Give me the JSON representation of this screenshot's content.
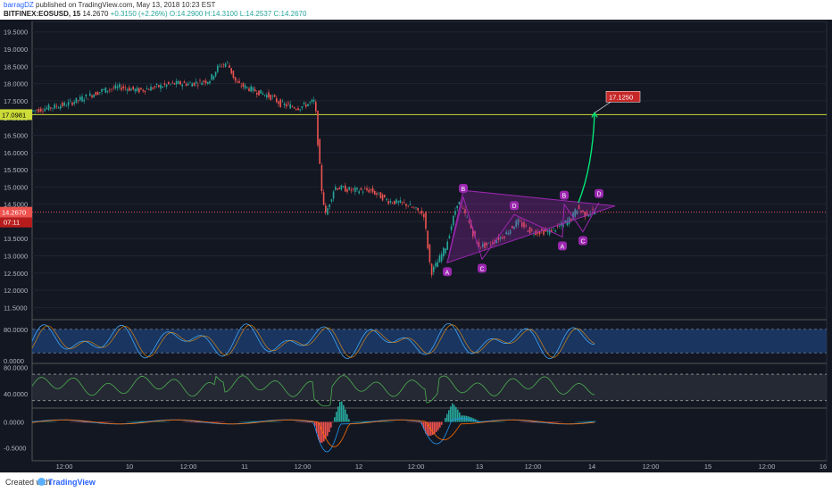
{
  "header": {
    "author": "barragDZ",
    "published": "published on TradingView.com, May 13, 2018 10:23 EST",
    "symbol": "BITFINEX:EOSUSD, 15",
    "last": "14.2670",
    "change": "+0.3150 (+2.26%)",
    "open": "O:14.2900",
    "high": "H:14.3100",
    "low": "L:14.2537",
    "close": "C:14.2670"
  },
  "colors": {
    "background": "#131722",
    "candle_up": "#26a69a",
    "candle_down": "#ef5350",
    "resistance": "#cddc39",
    "pattern": "#9c27b0",
    "arrow": "#00e676",
    "stoch_fill": "#1e4a8a",
    "rsi": "#4caf50"
  },
  "chart_data": {
    "type": "candlestick",
    "title": "",
    "ylim": [
      11.2,
      19.7
    ],
    "y_ticks": [
      "19.5000",
      "19.0000",
      "18.5000",
      "18.0000",
      "17.5000",
      "17.0000",
      "16.5000",
      "16.0000",
      "15.5000",
      "15.0000",
      "14.5000",
      "14.0000",
      "13.5000",
      "13.0000",
      "12.5000",
      "12.0000",
      "11.5000"
    ],
    "x_ticks": [
      "12:00",
      "10",
      "12:00",
      "11",
      "12:00",
      "12",
      "12:00",
      "13",
      "12:00",
      "14",
      "12:00",
      "15",
      "12:00",
      "16"
    ],
    "price_path": [
      [
        0,
        17.2
      ],
      [
        20,
        17.3
      ],
      [
        40,
        17.4
      ],
      [
        60,
        17.6
      ],
      [
        80,
        17.8
      ],
      [
        100,
        17.9
      ],
      [
        120,
        17.8
      ],
      [
        140,
        17.9
      ],
      [
        160,
        18.0
      ],
      [
        180,
        18.0
      ],
      [
        200,
        18.1
      ],
      [
        210,
        18.5
      ],
      [
        220,
        18.6
      ],
      [
        230,
        18.0
      ],
      [
        250,
        17.8
      ],
      [
        270,
        17.6
      ],
      [
        280,
        17.4
      ],
      [
        300,
        17.3
      ],
      [
        318,
        17.5
      ],
      [
        322,
        16.0
      ],
      [
        326,
        14.8
      ],
      [
        330,
        14.2
      ],
      [
        340,
        15.0
      ],
      [
        360,
        14.9
      ],
      [
        380,
        14.9
      ],
      [
        400,
        14.6
      ],
      [
        420,
        14.5
      ],
      [
        440,
        14.2
      ],
      [
        448,
        12.5
      ],
      [
        455,
        12.8
      ],
      [
        465,
        13.3
      ],
      [
        478,
        14.6
      ],
      [
        490,
        14.0
      ],
      [
        500,
        13.3
      ],
      [
        510,
        13.3
      ],
      [
        530,
        13.6
      ],
      [
        545,
        14.0
      ],
      [
        560,
        13.7
      ],
      [
        580,
        13.7
      ],
      [
        595,
        13.9
      ],
      [
        605,
        14.1
      ],
      [
        612,
        14.4
      ],
      [
        620,
        14.2
      ],
      [
        630,
        14.3
      ]
    ],
    "resistance_level": "17.0981",
    "current_price": "14.2670",
    "countdown": "07:11",
    "target_label": "17.1250",
    "pattern_points": [
      {
        "label": "A",
        "x": 465,
        "y": 12.8
      },
      {
        "label": "B",
        "x": 483,
        "y": 14.7
      },
      {
        "label": "C",
        "x": 504,
        "y": 12.9
      },
      {
        "label": "D",
        "x": 540,
        "y": 14.2
      },
      {
        "label": "A",
        "x": 594,
        "y": 13.55
      },
      {
        "label": "B",
        "x": 596,
        "y": 14.5
      },
      {
        "label": "C",
        "x": 617,
        "y": 13.7
      },
      {
        "label": "D",
        "x": 635,
        "y": 14.55
      }
    ],
    "stoch": {
      "ticks": [
        "80.0000",
        "0.0000"
      ],
      "ylim": [
        0,
        100
      ]
    },
    "rsi": {
      "ticks": [
        "80.0000",
        "40.0000"
      ],
      "ylim": [
        20,
        85
      ]
    },
    "macd": {
      "ticks": [
        "0.0000",
        "-0.5000"
      ],
      "ylim": [
        -0.75,
        0.25
      ]
    }
  },
  "footer": {
    "created_with": "Created with",
    "brand": "TradingView"
  }
}
